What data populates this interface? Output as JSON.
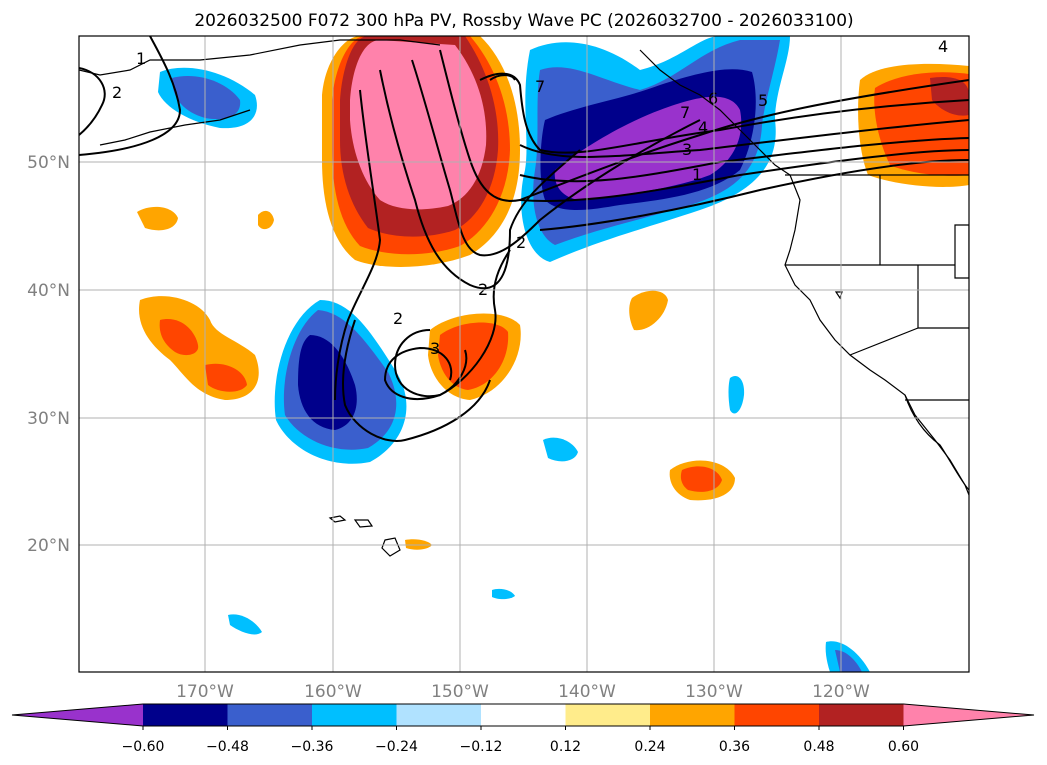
{
  "title": "2026032500 F072 300 hPa PV, Rossby Wave PC (2026032700 - 2026033100)",
  "map": {
    "lat_labels": [
      "50°N",
      "40°N",
      "30°N",
      "20°N"
    ],
    "lon_labels": [
      "170°W",
      "160°W",
      "150°W",
      "140°W",
      "130°W",
      "120°W"
    ],
    "contour_labels": [
      "1",
      "2",
      "2",
      "2",
      "2",
      "3",
      "3",
      "4",
      "4",
      "5",
      "6",
      "7",
      "7",
      "1"
    ]
  },
  "colorbar": {
    "ticks": [
      "−0.60",
      "−0.48",
      "−0.36",
      "−0.24",
      "−0.12",
      "0.12",
      "0.24",
      "0.36",
      "0.48",
      "0.60"
    ],
    "colors": [
      "#9932CC",
      "#00008B",
      "#3A5FCD",
      "#00BFFF",
      "#B0E2FF",
      "#FFFFFF",
      "#FFEC8B",
      "#FFA500",
      "#FF4500",
      "#B22222",
      "#FF82AB"
    ]
  }
}
